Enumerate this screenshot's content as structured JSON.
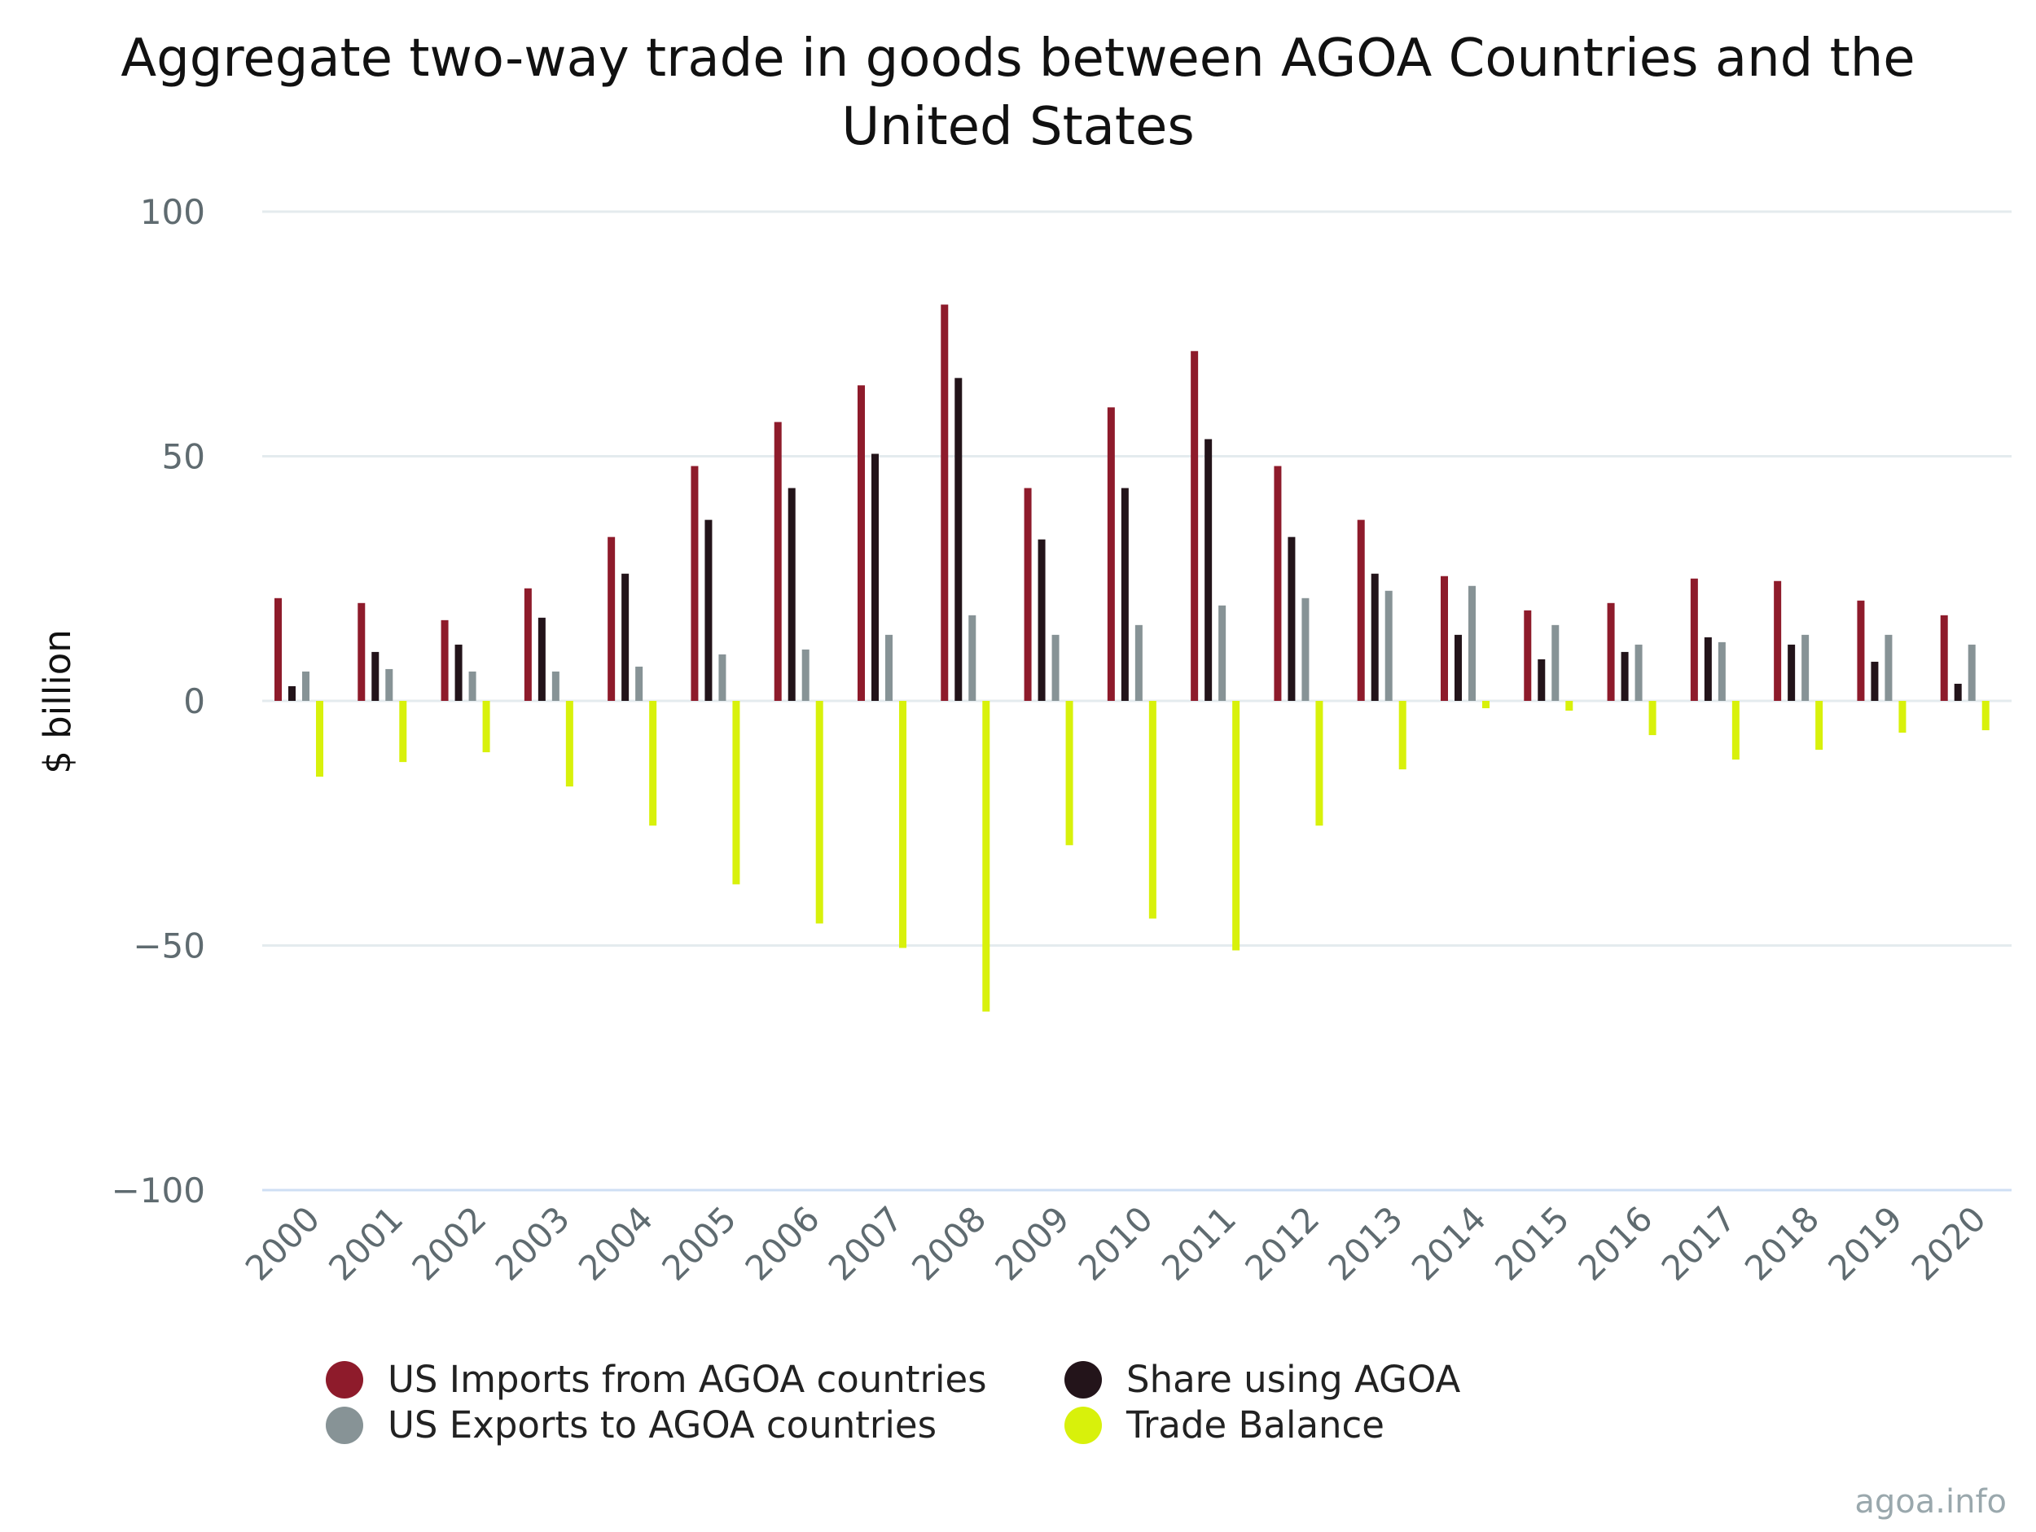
{
  "chart_data": {
    "type": "bar",
    "title_lines": [
      "Aggregate two-way trade in goods between AGOA Countries and the",
      "United States"
    ],
    "xlabel": "",
    "ylabel": "$ billion",
    "ylim": [
      -100,
      100
    ],
    "yticks": [
      100,
      50,
      0,
      -50,
      -100
    ],
    "ytick_labels": [
      "100",
      "50",
      "0",
      "−50",
      "−100"
    ],
    "categories": [
      "2000",
      "2001",
      "2002",
      "2003",
      "2004",
      "2005",
      "2006",
      "2007",
      "2008",
      "2009",
      "2010",
      "2011",
      "2012",
      "2013",
      "2014",
      "2015",
      "2016",
      "2017",
      "2018",
      "2019",
      "2020"
    ],
    "grid": true,
    "legend_position": "bottom",
    "series": [
      {
        "name": "US Imports from AGOA countries",
        "color": "#8e1b2b",
        "values": [
          21,
          20,
          16.5,
          23,
          33.5,
          48,
          57,
          64.5,
          81,
          43.5,
          60,
          71.5,
          48,
          37,
          25.5,
          18.5,
          20,
          25,
          24.5,
          20.5,
          17.5
        ]
      },
      {
        "name": "Share using AGOA",
        "color": "#23141a",
        "values": [
          3,
          10,
          11.5,
          17,
          26,
          37,
          43.5,
          50.5,
          66,
          33,
          43.5,
          53.5,
          33.5,
          26,
          13.5,
          8.5,
          10,
          13,
          11.5,
          8,
          3.5
        ]
      },
      {
        "name": "US Exports to AGOA countries",
        "color": "#879396",
        "values": [
          6,
          6.5,
          6,
          6,
          7,
          9.5,
          10.5,
          13.5,
          17.5,
          13.5,
          15.5,
          19.5,
          21,
          22.5,
          23.5,
          15.5,
          11.5,
          12,
          13.5,
          13.5,
          11.5
        ]
      },
      {
        "name": "Trade Balance",
        "color": "#d8f10b",
        "values": [
          -15.5,
          -12.5,
          -10.5,
          -17.5,
          -25.5,
          -37.5,
          -45.5,
          -50.5,
          -63.5,
          -29.5,
          -44.5,
          -51,
          -25.5,
          -14,
          -1.5,
          -2,
          -7,
          -12,
          -10,
          -6.5,
          -6
        ]
      }
    ]
  },
  "credit": "agoa.info"
}
